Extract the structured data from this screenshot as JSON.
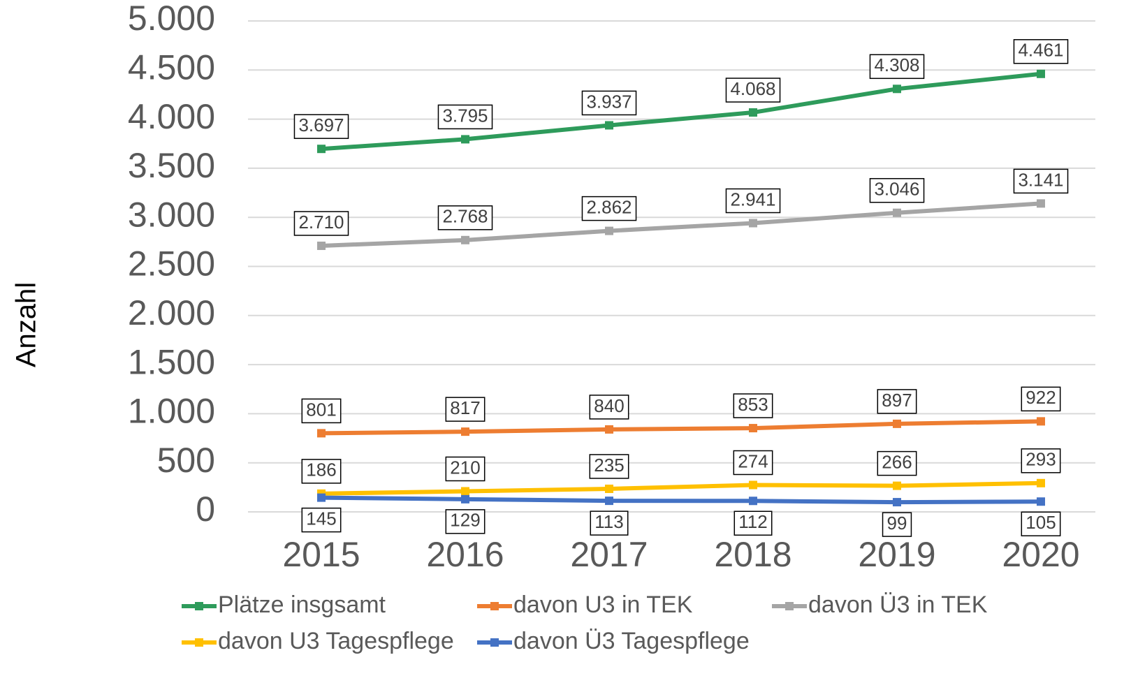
{
  "chart_data": {
    "type": "line",
    "y_label": "Anzahl",
    "categories": [
      "2015",
      "2016",
      "2017",
      "2018",
      "2019",
      "2020"
    ],
    "series": [
      {
        "name": "Plätze insgsamt",
        "color": "#2e9b5b",
        "values": [
          3697,
          3795,
          3937,
          4068,
          4308,
          4461
        ],
        "value_labels": [
          "3.697",
          "3.795",
          "3.937",
          "4.068",
          "4.308",
          "4.461"
        ]
      },
      {
        "name": "davon U3 in TEK",
        "color": "#ed7d31",
        "values": [
          801,
          817,
          840,
          853,
          897,
          922
        ]
      },
      {
        "name": "davon Ü3 in TEK",
        "color": "#a5a5a5",
        "values": [
          2710,
          2768,
          2862,
          2941,
          3046,
          3141
        ],
        "value_labels": [
          "2.710",
          "2.768",
          "2.862",
          "2.941",
          "3.046",
          "3.141"
        ]
      },
      {
        "name": "davon U3 Tagespflege",
        "color": "#ffc000",
        "values": [
          186,
          210,
          235,
          274,
          266,
          293
        ]
      },
      {
        "name": "davon Ü3 Tagespflege",
        "color": "#4472c4",
        "values": [
          145,
          129,
          113,
          112,
          99,
          105
        ]
      }
    ],
    "ylim": [
      0,
      5000
    ],
    "yticks": [
      0,
      500,
      {
        "value": 1000,
        "label": "1.000"
      },
      {
        "value": 1500,
        "label": "1.500"
      },
      {
        "value": 2000,
        "label": "2.000"
      },
      {
        "value": 2500,
        "label": "2.500"
      },
      {
        "value": 3000,
        "label": "3.000"
      },
      {
        "value": 3500,
        "label": "3.500"
      },
      {
        "value": 4000,
        "label": "4.000"
      },
      {
        "value": 4500,
        "label": "4.500"
      },
      {
        "value": 5000,
        "label": "5.000"
      }
    ],
    "grid": true,
    "legend": "bottom"
  }
}
